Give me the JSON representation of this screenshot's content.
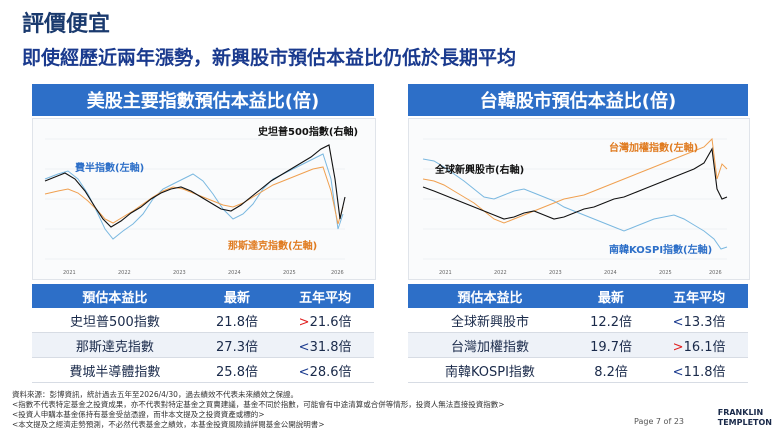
{
  "header": {
    "title": "評價便宜",
    "subtitle": "即使經歷近兩年漲勢，新興股市預估本益比仍低於長期平均"
  },
  "left_panel": {
    "heading": "美股主要指數預估本益比(倍)",
    "chart_labels": {
      "sp500": "史坦普500指數(右軸)",
      "sox": "費半指數(左軸)",
      "nasdaq": "那斯達克指數(左軸)"
    },
    "x_ticks": [
      "2021",
      "2022",
      "2023",
      "2024",
      "2025",
      "2026"
    ],
    "table": {
      "headers": [
        "預估本益比",
        "最新",
        "五年平均"
      ],
      "rows": [
        {
          "name": "史坦普500指數",
          "latest": "21.8倍",
          "sign": ">",
          "avg": "21.6倍"
        },
        {
          "name": "那斯達克指數",
          "latest": "27.3倍",
          "sign": "<",
          "avg": "31.8倍"
        },
        {
          "name": "費城半導體指數",
          "latest": "25.8倍",
          "sign": "<",
          "avg": "28.6倍"
        }
      ]
    }
  },
  "right_panel": {
    "heading": "台韓股市預估本益比(倍)",
    "chart_labels": {
      "em": "全球新興股市(右軸)",
      "taiex": "台灣加權指數(左軸)",
      "kospi": "南韓KOSPI指數(左軸)"
    },
    "x_ticks": [
      "2021",
      "2022",
      "2023",
      "2024",
      "2025",
      "2026"
    ],
    "table": {
      "headers": [
        "預估本益比",
        "最新",
        "五年平均"
      ],
      "rows": [
        {
          "name": "全球新興股市",
          "latest": "12.2倍",
          "sign": "<",
          "avg": "13.3倍"
        },
        {
          "name": "台灣加權指數",
          "latest": "19.7倍",
          "sign": ">",
          "avg": "16.1倍"
        },
        {
          "name": "南韓KOSPI指數",
          "latest": "8.2倍",
          "sign": "<",
          "avg": "11.8倍"
        }
      ]
    }
  },
  "footer": {
    "lines": [
      "資料來源：彭博資訊，統計過去五年至2026/4/30，過去績效不代表未來績效之保證。",
      "<指數不代表特定基金之投資成果，亦不代表對特定基金之買賣建議，基金不同於指數，可能會有中途清算或合併等情形，投資人無法直接投資指數>",
      "<投資人申購本基金係持有基金受益憑證，而非本文提及之投資資產或標的>",
      "<本文提及之經濟走勢預測，不必然代表基金之績效，本基金投資風險請詳閱基金公開說明書>"
    ],
    "page": "Page 7 of 23",
    "logo_line1": "FRANKLIN",
    "logo_line2": "TEMPLETON"
  },
  "colors": {
    "brand_blue": "#2d6fc8",
    "red": "#e02020",
    "series_black": "#111111",
    "series_orange": "#f0a050",
    "series_lightblue": "#7ab8e0"
  },
  "icons": {
    "logo": "franklin-templeton-logo"
  }
}
